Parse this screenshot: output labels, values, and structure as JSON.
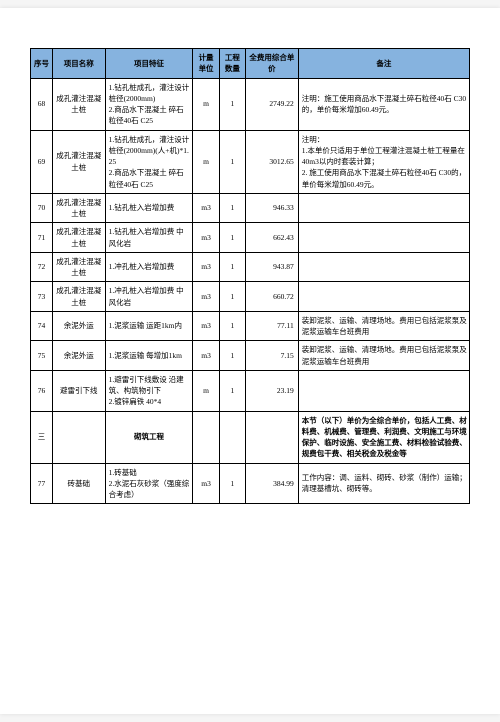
{
  "colors": {
    "header_bg": "#86b3df",
    "border": "#000000",
    "page_bg": "#ffffff"
  },
  "headers": {
    "seq": "序号",
    "name": "项目名称",
    "feature": "项目特征",
    "unit": "计量单位",
    "qty": "工程数量",
    "price": "全费用综合单价",
    "note": "备注"
  },
  "rows": [
    {
      "seq": "68",
      "name": "成孔灌注混凝土桩",
      "feature": "1.钻孔桩成孔，灌注设计桩径(2000mm)\n2.商品水下混凝土 碎石粒径40石 C25",
      "unit": "m",
      "qty": "1",
      "price": "2749.22",
      "note": "注明：施工使用商品水下混凝土碎石粒径40石 C30的，单价每米增加60.49元。"
    },
    {
      "seq": "69",
      "name": "成孔灌注混凝土桩",
      "feature": "1.钻孔桩成孔，灌注设计桩径(2000mm)(人+机)*1.25\n2.商品水下混凝土 碎石粒径40石 C25",
      "unit": "m",
      "qty": "1",
      "price": "3012.65",
      "note": "注明：\n1.本单价只适用于单位工程灌注混凝土桩工程量在40m3以内时套装计算；\n2. 施工使用商品水下混凝土碎石粒径40石 C30的，单价每米增加60.49元。"
    },
    {
      "seq": "70",
      "name": "成孔灌注混凝土桩",
      "feature": "1.钻孔桩入岩增加费",
      "unit": "m3",
      "qty": "1",
      "price": "946.33",
      "note": ""
    },
    {
      "seq": "71",
      "name": "成孔灌注混凝土桩",
      "feature": "1.钻孔桩入岩增加费 中风化岩",
      "unit": "m3",
      "qty": "1",
      "price": "662.43",
      "note": ""
    },
    {
      "seq": "72",
      "name": "成孔灌注混凝土桩",
      "feature": "1.冲孔桩入岩增加费",
      "unit": "m3",
      "qty": "1",
      "price": "943.87",
      "note": ""
    },
    {
      "seq": "73",
      "name": "成孔灌注混凝土桩",
      "feature": "1.冲孔桩入岩增加费 中风化岩",
      "unit": "m3",
      "qty": "1",
      "price": "660.72",
      "note": ""
    },
    {
      "seq": "74",
      "name": "余泥外运",
      "feature": "1.泥浆运输 运距1km内",
      "unit": "m3",
      "qty": "1",
      "price": "77.11",
      "note": "装卸泥浆、运输、清理场地。费用已包括泥浆泵及泥浆运输车台班费用"
    },
    {
      "seq": "75",
      "name": "余泥外运",
      "feature": "1.泥浆运输 每增加1km",
      "unit": "m3",
      "qty": "1",
      "price": "7.15",
      "note": "装卸泥浆、运输、清理场地。费用已包括泥浆泵及泥浆运输车台班费用"
    },
    {
      "seq": "76",
      "name": "避雷引下线",
      "feature": "1.避雷引下线敷设 沿建筑、构筑物引下\n2.镀锌扁铁 40*4",
      "unit": "m",
      "qty": "1",
      "price": "23.19",
      "note": ""
    },
    {
      "seq": "三",
      "name": "",
      "feature": "砌筑工程",
      "unit": "",
      "qty": "",
      "price": "",
      "note": "本节（以下）单价为全综合单价，包括人工费、材料费、机械费、管理费、利润费、文明施工与环境保护、临时设施、安全施工费、材料检验试验费、规费包干费、相关税金及税金等"
    },
    {
      "seq": "77",
      "name": "砖基础",
      "feature": "1.砖基础\n2.水泥石灰砂浆（强度综合考虑）",
      "unit": "m3",
      "qty": "1",
      "price": "384.99",
      "note": "工作内容：调、运料、砌砖、砂浆（制作）运输；清理基槽坑、砌砖等。"
    }
  ]
}
